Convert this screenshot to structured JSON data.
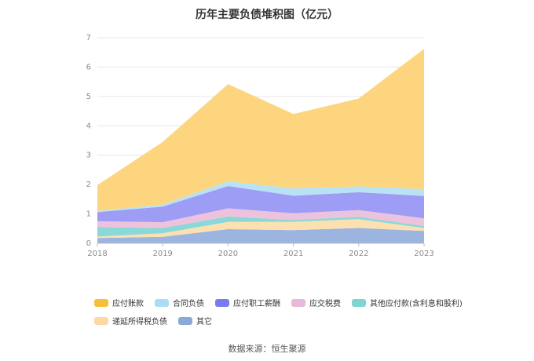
{
  "chart_data": {
    "type": "area",
    "title": "历年主要负债堆积图（亿元）",
    "stacked": true,
    "categories": [
      "2018",
      "2019",
      "2020",
      "2021",
      "2022",
      "2023"
    ],
    "ylim": [
      0,
      7
    ],
    "yticks": [
      "0",
      "1",
      "2",
      "3",
      "4",
      "5",
      "6",
      "7"
    ],
    "grid": true,
    "legend_position": "bottom",
    "series": [
      {
        "name": "其它",
        "color": "#9bb4e0",
        "values": [
          0.18,
          0.22,
          0.48,
          0.45,
          0.52,
          0.42
        ]
      },
      {
        "name": "递延所得税负债",
        "color": "#fde0b0",
        "values": [
          0.05,
          0.12,
          0.25,
          0.28,
          0.3,
          0.1
        ]
      },
      {
        "name": "其他应付款(含利息和股利)",
        "color": "#8ad8d8",
        "values": [
          0.32,
          0.18,
          0.18,
          0.06,
          0.08,
          0.07
        ]
      },
      {
        "name": "应交税费",
        "color": "#ecc2dd",
        "values": [
          0.2,
          0.2,
          0.28,
          0.23,
          0.23,
          0.26
        ]
      },
      {
        "name": "应付职工薪酬",
        "color": "#9d9df5",
        "values": [
          0.31,
          0.53,
          0.76,
          0.6,
          0.61,
          0.76
        ]
      },
      {
        "name": "合同负债",
        "color": "#b9e2f5",
        "values": [
          0.04,
          0.07,
          0.16,
          0.25,
          0.2,
          0.23
        ]
      },
      {
        "name": "应付账款",
        "color": "#fdd57e",
        "values": [
          0.88,
          2.13,
          3.31,
          2.53,
          2.99,
          4.78
        ]
      }
    ],
    "legend_order": [
      "应付账款",
      "合同负债",
      "应付职工薪酬",
      "应交税费",
      "其他应付款(含利息和股利)",
      "递延所得税负债",
      "其它"
    ],
    "legend_colors": {
      "应付账款": "#f5bf3c",
      "合同负债": "#a9ddf5",
      "应付职工薪酬": "#7b7bef",
      "应交税费": "#e7b9d8",
      "其他应付款(含利息和股利)": "#7fd4d4",
      "递延所得税负债": "#fcd9a4",
      "其它": "#8aa9da"
    }
  },
  "source": "数据来源：恒生聚源"
}
